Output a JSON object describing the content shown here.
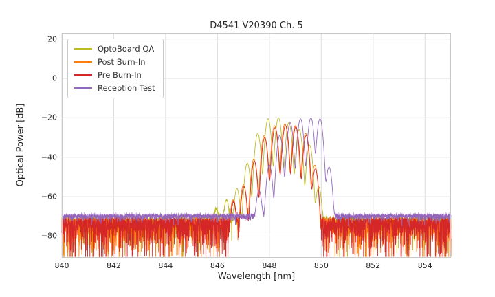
{
  "chart_data": {
    "type": "line",
    "title": "D4541 V20390 Ch. 5",
    "xlabel": "Wavelength [nm]",
    "ylabel": "Optical Power [dB]",
    "xlim": [
      840,
      855
    ],
    "ylim": [
      -91,
      23
    ],
    "xticks": [
      840,
      842,
      844,
      846,
      848,
      850,
      852,
      854
    ],
    "yticks": [
      20,
      0,
      -20,
      -40,
      -60,
      -80
    ],
    "grid": true,
    "legend_position": "upper left",
    "style": {
      "background": "#ffffff",
      "grid_color": "#dcdcdc",
      "frame_color": "#c9c9c9",
      "text_color": "#262626"
    },
    "series": [
      {
        "name": "OptoBoard QA",
        "color": "#bcbd22",
        "mode_width_nm": 0.08,
        "noise": {
          "top_db": -70.2,
          "spike_scale": 3.5,
          "max_spike_db": 22
        },
        "modes": [
          [
            845.95,
            -67
          ],
          [
            846.35,
            -62
          ],
          [
            846.75,
            -56
          ],
          [
            847.15,
            -43
          ],
          [
            847.55,
            -28
          ],
          [
            847.95,
            -20.5
          ],
          [
            848.35,
            -20
          ],
          [
            848.75,
            -22.5
          ],
          [
            849.15,
            -26
          ],
          [
            849.55,
            -34
          ],
          [
            849.9,
            -55
          ]
        ]
      },
      {
        "name": "Post Burn-In",
        "color": "#ff7f0e",
        "mode_width_nm": 0.08,
        "noise": {
          "top_db": -70.5,
          "spike_scale": 5.0,
          "max_spike_db": 24
        },
        "modes": [
          [
            846.6,
            -62
          ],
          [
            847.0,
            -54
          ],
          [
            847.4,
            -41
          ],
          [
            847.8,
            -29
          ],
          [
            848.2,
            -24
          ],
          [
            848.6,
            -23
          ],
          [
            849.0,
            -24
          ],
          [
            849.4,
            -28
          ],
          [
            849.75,
            -44
          ]
        ]
      },
      {
        "name": "Pre Burn-In",
        "color": "#d62728",
        "mode_width_nm": 0.08,
        "noise": {
          "top_db": -70.5,
          "spike_scale": 5.2,
          "max_spike_db": 24
        },
        "modes": [
          [
            846.62,
            -63
          ],
          [
            847.02,
            -55
          ],
          [
            847.42,
            -42
          ],
          [
            847.82,
            -30
          ],
          [
            848.22,
            -25
          ],
          [
            848.62,
            -24
          ],
          [
            849.02,
            -24.5
          ],
          [
            849.42,
            -29
          ],
          [
            849.77,
            -46
          ]
        ]
      },
      {
        "name": "Reception Test",
        "color": "#9467bd",
        "mode_width_nm": 0.08,
        "noise": {
          "top_db": -69.2,
          "spike_scale": 0.8,
          "max_spike_db": 6
        },
        "modes": [
          [
            847.6,
            -57
          ],
          [
            848.0,
            -44
          ],
          [
            848.4,
            -29
          ],
          [
            848.8,
            -22.5
          ],
          [
            849.2,
            -20.5
          ],
          [
            849.6,
            -20
          ],
          [
            849.95,
            -20.5
          ],
          [
            850.3,
            -45
          ]
        ]
      }
    ]
  }
}
